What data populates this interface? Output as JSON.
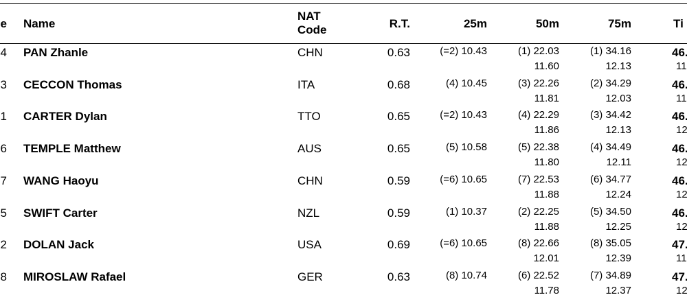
{
  "table": {
    "headers": [
      "e",
      "Name",
      "NAT Code",
      "R.T.",
      "25m",
      "50m",
      "75m",
      "Ti"
    ],
    "rows": [
      {
        "lane": "4",
        "name": "PAN Zhanle",
        "nat": "CHN",
        "rt": "0.63",
        "s25": "(=2) 10.43",
        "s50": "(1) 22.03",
        "d50": "11.60",
        "s75": "(1) 34.16",
        "d75": "12.13",
        "time": "46.",
        "dtime": "11"
      },
      {
        "lane": "3",
        "name": "CECCON Thomas",
        "nat": "ITA",
        "rt": "0.68",
        "s25": "(4) 10.45",
        "s50": "(3) 22.26",
        "d50": "11.81",
        "s75": "(2) 34.29",
        "d75": "12.03",
        "time": "46.",
        "dtime": "11"
      },
      {
        "lane": "1",
        "name": "CARTER Dylan",
        "nat": "TTO",
        "rt": "0.65",
        "s25": "(=2) 10.43",
        "s50": "(4) 22.29",
        "d50": "11.86",
        "s75": "(3) 34.42",
        "d75": "12.13",
        "time": "46.",
        "dtime": "12"
      },
      {
        "lane": "6",
        "name": "TEMPLE Matthew",
        "nat": "AUS",
        "rt": "0.65",
        "s25": "(5) 10.58",
        "s50": "(5) 22.38",
        "d50": "11.80",
        "s75": "(4) 34.49",
        "d75": "12.11",
        "time": "46.",
        "dtime": "12"
      },
      {
        "lane": "7",
        "name": "WANG Haoyu",
        "nat": "CHN",
        "rt": "0.59",
        "s25": "(=6) 10.65",
        "s50": "(7) 22.53",
        "d50": "11.88",
        "s75": "(6) 34.77",
        "d75": "12.24",
        "time": "46.",
        "dtime": "12"
      },
      {
        "lane": "5",
        "name": "SWIFT Carter",
        "nat": "NZL",
        "rt": "0.59",
        "s25": "(1) 10.37",
        "s50": "(2) 22.25",
        "d50": "11.88",
        "s75": "(5) 34.50",
        "d75": "12.25",
        "time": "46.",
        "dtime": "12"
      },
      {
        "lane": "2",
        "name": "DOLAN Jack",
        "nat": "USA",
        "rt": "0.69",
        "s25": "(=6) 10.65",
        "s50": "(8) 22.66",
        "d50": "12.01",
        "s75": "(8) 35.05",
        "d75": "12.39",
        "time": "47.",
        "dtime": "11"
      },
      {
        "lane": "8",
        "name": "MIROSLAW Rafael",
        "nat": "GER",
        "rt": "0.63",
        "s25": "(8) 10.74",
        "s50": "(6) 22.52",
        "d50": "11.78",
        "s75": "(7) 34.89",
        "d75": "12.37",
        "time": "47.",
        "dtime": "12"
      }
    ]
  }
}
